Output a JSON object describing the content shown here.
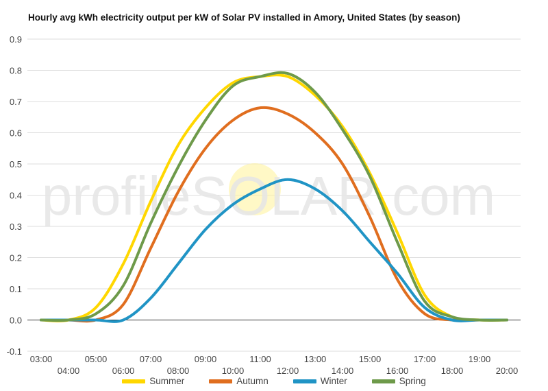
{
  "chart_data": {
    "type": "line",
    "title": "Hourly avg kWh electricity output per kW of Solar PV installed in Amory, United States (by season)",
    "watermark": "profileSOLAR.com",
    "x": [
      "03:00",
      "04:00",
      "05:00",
      "06:00",
      "07:00",
      "08:00",
      "09:00",
      "10:00",
      "11:00",
      "12:00",
      "13:00",
      "14:00",
      "15:00",
      "16:00",
      "17:00",
      "18:00",
      "19:00",
      "20:00"
    ],
    "ylim": [
      -0.1,
      0.9
    ],
    "yticks": [
      "-0.1",
      "0.0",
      "0.1",
      "0.2",
      "0.3",
      "0.4",
      "0.5",
      "0.6",
      "0.7",
      "0.8",
      "0.9"
    ],
    "grid": true,
    "legend_position": "bottom",
    "series": [
      {
        "name": "Summer",
        "color": "#FFD700",
        "values": [
          0.0,
          0.0,
          0.04,
          0.18,
          0.38,
          0.56,
          0.68,
          0.76,
          0.78,
          0.78,
          0.72,
          0.62,
          0.47,
          0.28,
          0.08,
          0.01,
          0.0,
          0.0
        ]
      },
      {
        "name": "Autumn",
        "color": "#E06E1F",
        "values": [
          0.0,
          0.0,
          0.0,
          0.05,
          0.23,
          0.41,
          0.55,
          0.64,
          0.68,
          0.66,
          0.6,
          0.5,
          0.33,
          0.13,
          0.02,
          0.0,
          0.0,
          0.0
        ]
      },
      {
        "name": "Winter",
        "color": "#2094C5",
        "values": [
          0.0,
          0.0,
          0.0,
          0.0,
          0.07,
          0.18,
          0.29,
          0.37,
          0.42,
          0.45,
          0.42,
          0.35,
          0.25,
          0.15,
          0.04,
          0.0,
          0.0,
          0.0
        ]
      },
      {
        "name": "Spring",
        "color": "#6E9A4A",
        "values": [
          0.0,
          0.0,
          0.02,
          0.11,
          0.31,
          0.49,
          0.64,
          0.75,
          0.78,
          0.79,
          0.73,
          0.61,
          0.46,
          0.25,
          0.06,
          0.01,
          0.0,
          0.0
        ]
      }
    ]
  }
}
